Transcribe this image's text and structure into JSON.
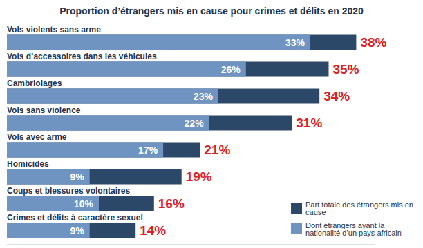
{
  "chart_data": {
    "type": "bar",
    "title": "Proportion d’étrangers mis en cause pour crimes et délits en 2020",
    "orientation": "horizontal",
    "categories": [
      "Vols violents sans arme",
      "Vols d’accessoires dans les véhicules",
      "Cambriolages",
      "Vols sans violence",
      "Vols avec arme",
      "Homicides",
      "Coups et blessures volontaires",
      "Crimes et délits à caractère sexuel"
    ],
    "series": [
      {
        "name": "Part totale des étrangers mis en cause",
        "color": "#2c4868",
        "values": [
          38,
          35,
          34,
          31,
          21,
          19,
          16,
          14
        ],
        "value_labels": [
          "38%",
          "35%",
          "34%",
          "31%",
          "21%",
          "19%",
          "16%",
          "14%"
        ]
      },
      {
        "name": "Dont étrangers ayant la nationalité d’un pays africain",
        "color": "#6f94c2",
        "values": [
          33,
          26,
          23,
          22,
          17,
          9,
          10,
          9
        ],
        "value_labels": [
          "33%",
          "26%",
          "23%",
          "22%",
          "17%",
          "9%",
          "10%",
          "9%"
        ]
      }
    ],
    "xlim": [
      0,
      40
    ],
    "grid": false,
    "legend": "lower right",
    "data_labels": true,
    "tick_labels": "y"
  }
}
